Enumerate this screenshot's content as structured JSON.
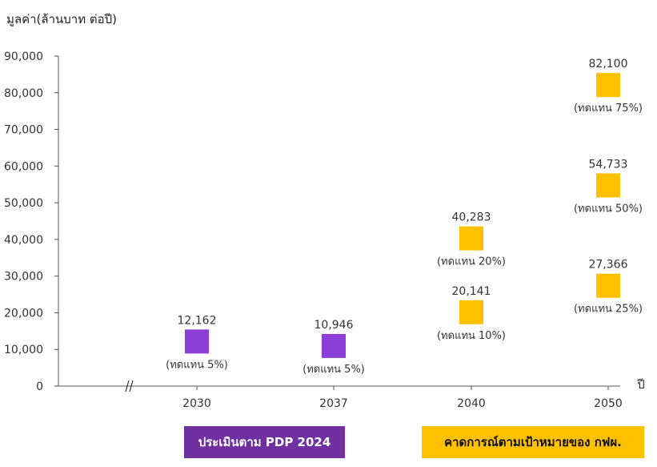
{
  "chart_data": {
    "type": "scatter",
    "ylabel": "มูลค่า(ล้านบาท ต่อปี)",
    "xlabel": "ปี",
    "ylim": [
      0,
      90000
    ],
    "yticks": [
      "0",
      "10,000",
      "20,000",
      "30,000",
      "40,000",
      "50,000",
      "60,000",
      "70,000",
      "80,000",
      "90,000"
    ],
    "categories": [
      "2030",
      "2037",
      "2040",
      "2050"
    ],
    "axis_break": true,
    "grid": false,
    "series": [
      {
        "name": "ประเมินตาม PDP 2024",
        "color": "#8b3fd6",
        "points": [
          {
            "x": "2030",
            "y": 12162,
            "value_label": "12,162",
            "note": "(ทดแทน 5%)"
          },
          {
            "x": "2037",
            "y": 10946,
            "value_label": "10,946",
            "note": "(ทดแทน 5%)"
          }
        ]
      },
      {
        "name": "คาดการณ์ตามเป้าหมายของ กฟผ.",
        "color": "#ffc000",
        "points": [
          {
            "x": "2040",
            "y": 20141,
            "value_label": "20,141",
            "note": "(ทดแทน 10%)"
          },
          {
            "x": "2040",
            "y": 40283,
            "value_label": "40,283",
            "note": "(ทดแทน 20%)"
          },
          {
            "x": "2050",
            "y": 27366,
            "value_label": "27,366",
            "note": "(ทดแทน 25%)"
          },
          {
            "x": "2050",
            "y": 54733,
            "value_label": "54,733",
            "note": "(ทดแทน 50%)"
          },
          {
            "x": "2050",
            "y": 82100,
            "value_label": "82,100",
            "note": "(ทดแทน 75%)"
          }
        ]
      }
    ]
  },
  "legend": {
    "pdp_label": "ประเมินตาม PDP 2024",
    "pdp_color": "#7030a0",
    "egat_label": "คาดการณ์ตามเป้าหมายของ กฟผ.",
    "egat_color": "#ffc000"
  }
}
